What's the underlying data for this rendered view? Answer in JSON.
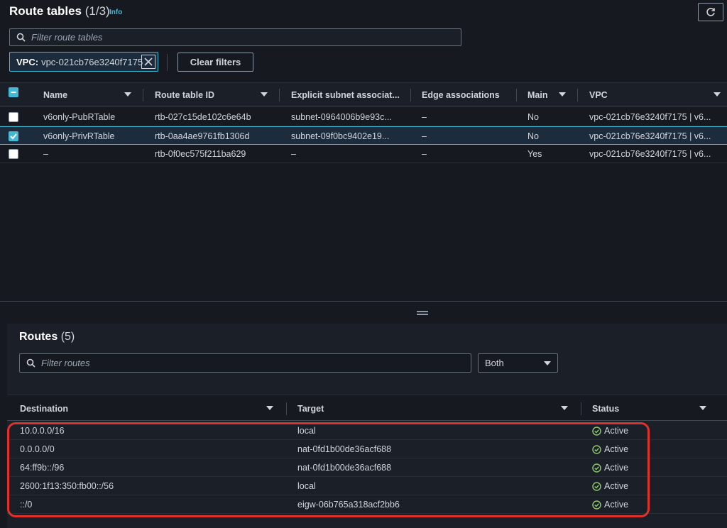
{
  "header": {
    "title": "Route tables",
    "count": "(1/3)",
    "info_link": "Info"
  },
  "filter": {
    "placeholder": "Filter route tables"
  },
  "token": {
    "key": "VPC:",
    "value": "vpc-021cb76e3240f7175"
  },
  "clear_filters": "Clear filters",
  "table": {
    "columns": [
      "Name",
      "Route table ID",
      "Explicit subnet associat...",
      "Edge associations",
      "Main",
      "VPC"
    ],
    "rows": [
      {
        "name": "v6only-PubRTable",
        "id": "rtb-027c15de102c6e64b",
        "subnet": "subnet-0964006b9e93c...",
        "edge": "–",
        "main": "No",
        "vpc": "vpc-021cb76e3240f7175 | v6...",
        "selected": false
      },
      {
        "name": "v6only-PrivRTable",
        "id": "rtb-0aa4ae9761fb1306d",
        "subnet": "subnet-09f0bc9402e19...",
        "edge": "–",
        "main": "No",
        "vpc": "vpc-021cb76e3240f7175 | v6...",
        "selected": true
      },
      {
        "name": "–",
        "id": "rtb-0f0ec575f211ba629",
        "subnet": "–",
        "edge": "–",
        "main": "Yes",
        "vpc": "vpc-021cb76e3240f7175 | v6...",
        "selected": false
      }
    ]
  },
  "routes": {
    "title": "Routes",
    "count": "(5)",
    "filter_placeholder": "Filter routes",
    "select_value": "Both",
    "columns": [
      "Destination",
      "Target",
      "Status"
    ],
    "rows": [
      {
        "destination": "10.0.0.0/16",
        "target": "local",
        "status": "Active"
      },
      {
        "destination": "0.0.0.0/0",
        "target": "nat-0fd1b00de36acf688",
        "status": "Active"
      },
      {
        "destination": "64:ff9b::/96",
        "target": "nat-0fd1b00de36acf688",
        "status": "Active"
      },
      {
        "destination": "2600:1f13:350:fb00::/56",
        "target": "local",
        "status": "Active"
      },
      {
        "destination": "::/0",
        "target": "eigw-06b765a318acf2bb6",
        "status": "Active"
      }
    ]
  },
  "colors": {
    "accent": "#44b9d6",
    "success": "#8cc56b",
    "highlight": "#e0322b",
    "background": "#16191f"
  }
}
